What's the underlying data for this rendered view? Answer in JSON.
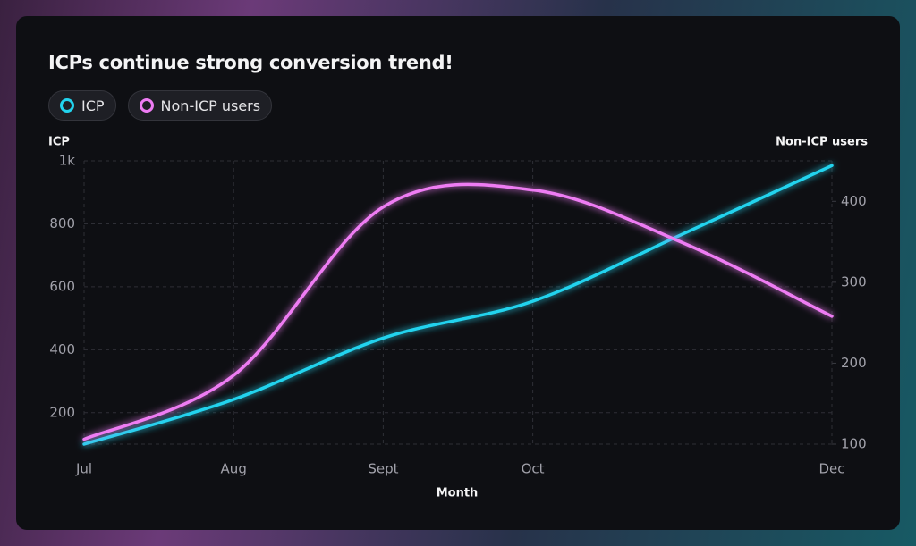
{
  "chart_data": {
    "type": "line",
    "title": "ICPs continue strong conversion trend!",
    "y_label": "ICP",
    "y2_label": "Non-ICP users",
    "x_label": "Month",
    "categories": [
      "Jul",
      "Aug",
      "Sept",
      "Oct",
      null,
      "Dec"
    ],
    "series": [
      {
        "name": "ICP",
        "color": "#22d3ee",
        "values": [
          100,
          242,
          437,
          554,
          767,
          985
        ]
      },
      {
        "name": "Non-ICP users",
        "color": "#ee7cf3",
        "axis": "y2",
        "values": [
          106,
          185,
          393,
          414,
          349,
          258
        ]
      }
    ],
    "ylim": [
      100,
      1000
    ],
    "yticks": [
      200,
      400,
      600,
      800,
      {
        "value": 1000,
        "label": "1k"
      }
    ],
    "y2lim": [
      100,
      450
    ],
    "y2ticks": [
      100,
      200,
      300,
      400
    ],
    "grid": true
  }
}
